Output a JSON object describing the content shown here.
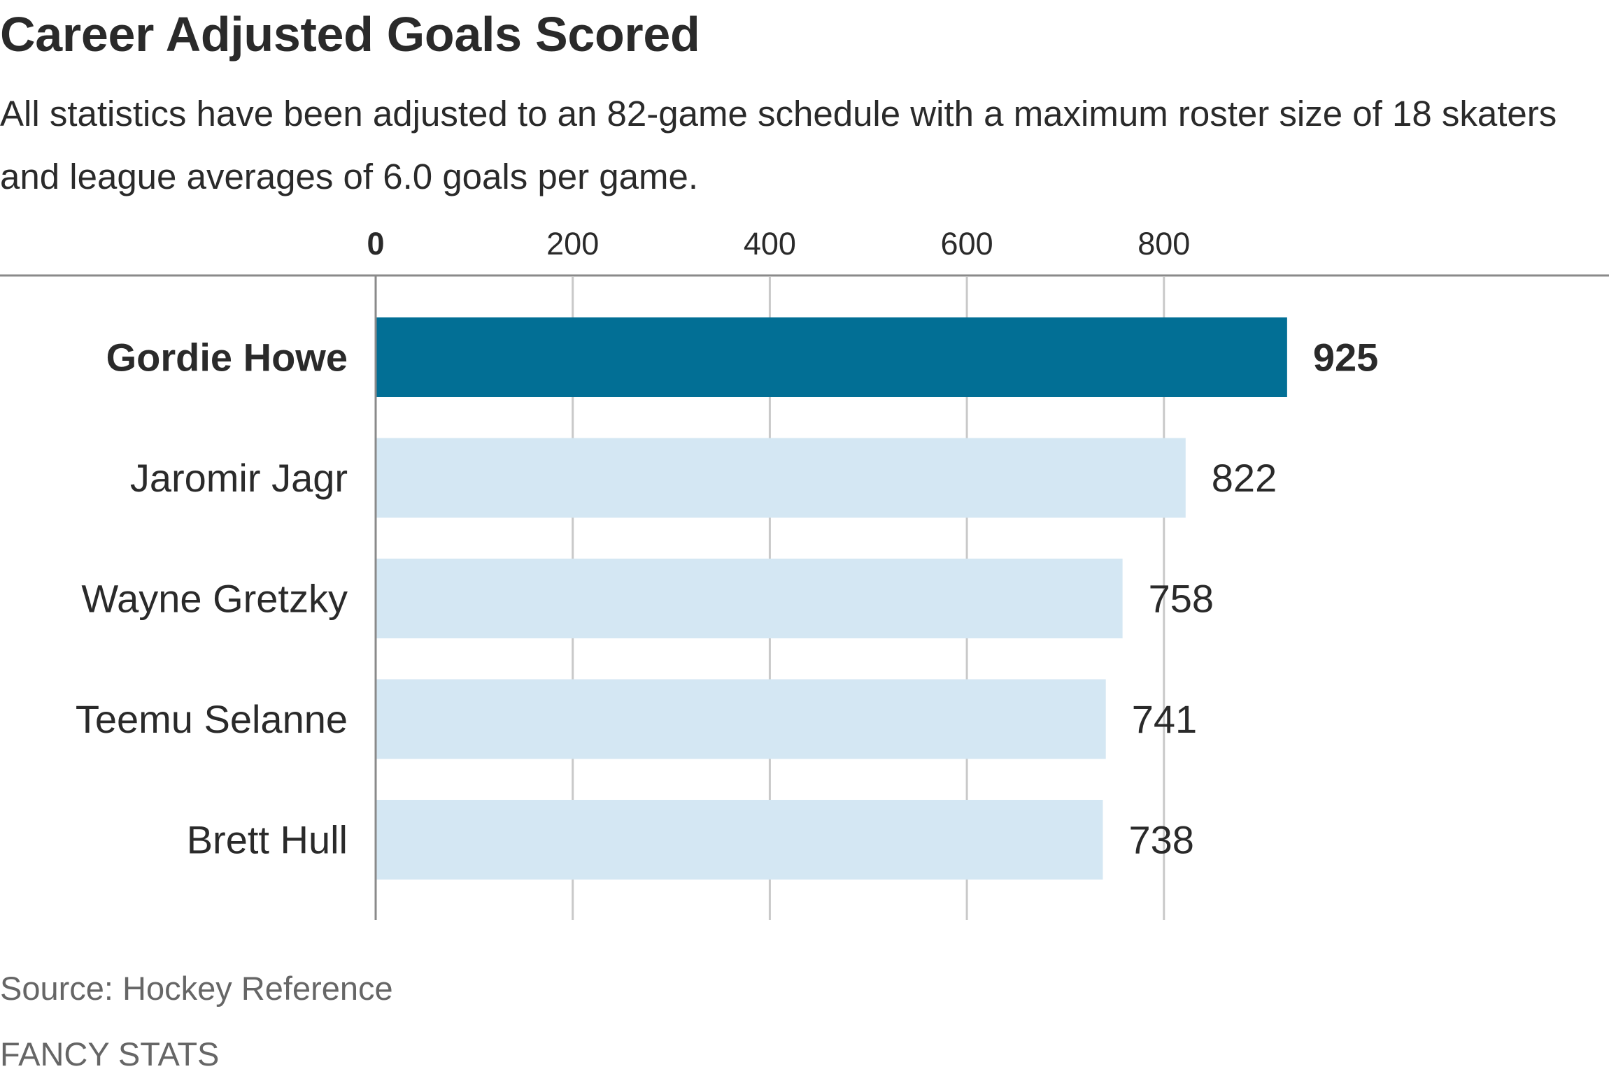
{
  "chart_data": {
    "type": "bar",
    "orientation": "horizontal",
    "title": "Career Adjusted Goals Scored",
    "subtitle": "All statistics have been adjusted to an 82-game schedule with a maximum roster size of 18 skaters and league averages of 6.0 goals per game.",
    "categories": [
      "Gordie Howe",
      "Jaromir Jagr",
      "Wayne Gretzky",
      "Teemu Selanne",
      "Brett Hull"
    ],
    "values": [
      925,
      822,
      758,
      741,
      738
    ],
    "highlight_index": 0,
    "xlim": [
      0,
      1000
    ],
    "xticks": [
      0,
      200,
      400,
      600,
      800
    ],
    "grid": true,
    "xlabel": "",
    "ylabel": "",
    "colors": {
      "highlight": "#026f95",
      "default": "#d4e7f3",
      "grid": "#c9c9c9",
      "axis": "#8a8a8a",
      "text": "#2a2a2a"
    }
  },
  "footer": {
    "source": "Source: Hockey Reference",
    "brand": "FANCY STATS"
  }
}
